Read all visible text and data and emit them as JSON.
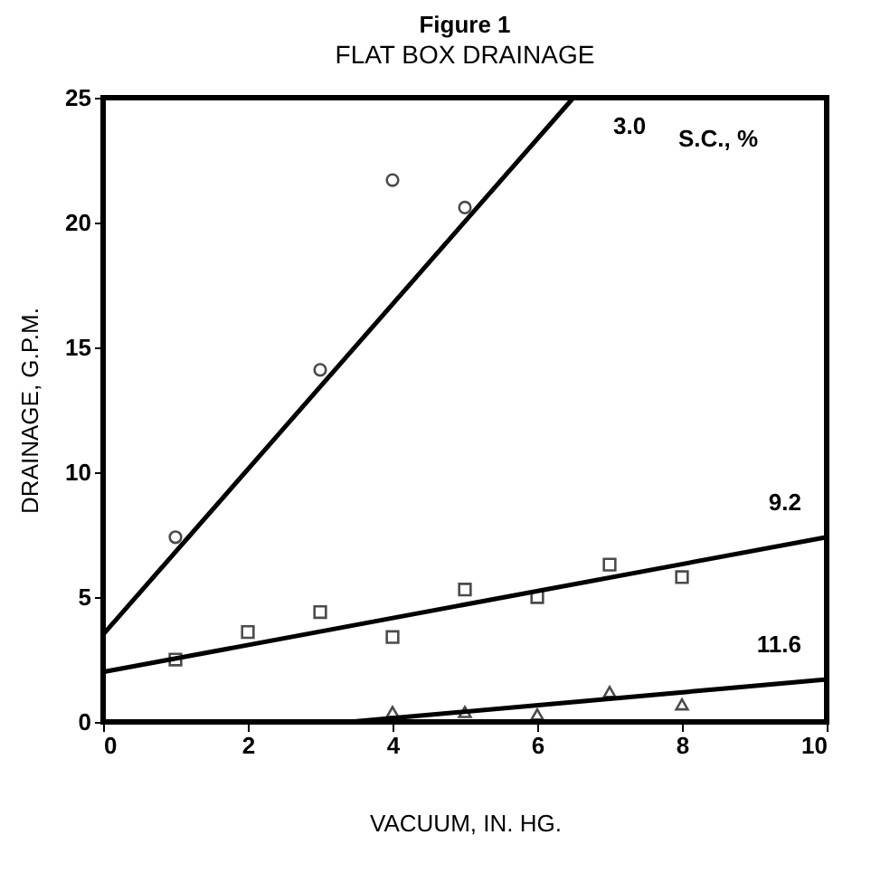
{
  "chart_data": {
    "type": "scatter",
    "title": "Figure 1",
    "subtitle": "FLAT BOX DRAINAGE",
    "xlabel": "VACUUM, IN. HG.",
    "ylabel": "DRAINAGE, G.P.M.",
    "xlim": [
      0,
      10
    ],
    "xticks": [
      0,
      2,
      4,
      6,
      8,
      10
    ],
    "ylim": [
      0,
      25
    ],
    "yticks": [
      0,
      5,
      10,
      15,
      20,
      25
    ],
    "series": [
      {
        "marker": "circle",
        "color": "#000000",
        "x": [
          1,
          3,
          4,
          5
        ],
        "values": [
          7.4,
          14.1,
          21.7,
          20.6
        ]
      },
      {
        "marker": "square",
        "color": "#000000",
        "x": [
          1,
          2,
          3,
          4,
          5,
          6,
          7,
          8
        ],
        "values": [
          2.5,
          3.6,
          4.4,
          3.4,
          5.3,
          5.0,
          6.3,
          5.8
        ]
      },
      {
        "marker": "triangle",
        "color": "#000000",
        "x": [
          4,
          5,
          6,
          7,
          8
        ],
        "values": [
          0.4,
          0.4,
          0.3,
          1.2,
          0.7
        ]
      },
      {
        "type": "line",
        "name": "3.0",
        "color": "#000000",
        "x": [
          0,
          6.5
        ],
        "values": [
          3.5,
          25
        ]
      },
      {
        "type": "line",
        "name": "9.2",
        "color": "#000000",
        "x": [
          0,
          10
        ],
        "values": [
          2.0,
          7.4
        ]
      },
      {
        "type": "line",
        "name": "11.6",
        "color": "#000000",
        "x": [
          3.4,
          10
        ],
        "values": [
          0,
          1.7
        ]
      }
    ],
    "annotations": [
      "S.C., %"
    ]
  }
}
